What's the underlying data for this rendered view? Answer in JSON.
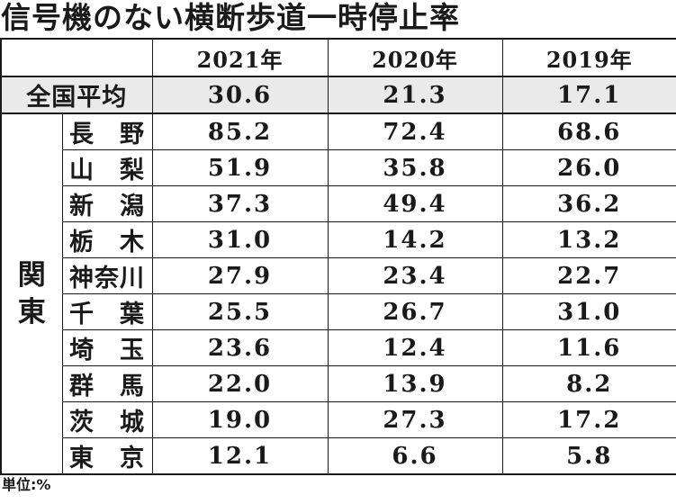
{
  "title": "信号機のない横断歩道一時停止率",
  "footnote": "単位:%",
  "colors": {
    "text": "#1a1a1a",
    "border": "#1a1a1a",
    "average_row_bg": "#eaeaea",
    "page_bg": "#ffffff"
  },
  "table": {
    "year_headers": [
      "2021年",
      "2020年",
      "2019年"
    ],
    "average_row": {
      "label": "全国平均",
      "values": [
        "30.6",
        "21.3",
        "17.1"
      ]
    },
    "region_group": {
      "label": "関東",
      "chars": [
        "関",
        "東"
      ]
    },
    "rows": [
      {
        "name": "長　野",
        "values": [
          "85.2",
          "72.4",
          "68.6"
        ]
      },
      {
        "name": "山　梨",
        "values": [
          "51.9",
          "35.8",
          "26.0"
        ]
      },
      {
        "name": "新　潟",
        "values": [
          "37.3",
          "49.4",
          "36.2"
        ]
      },
      {
        "name": "栃　木",
        "values": [
          "31.0",
          "14.2",
          "13.2"
        ]
      },
      {
        "name": "神奈川",
        "values": [
          "27.9",
          "23.4",
          "22.7"
        ]
      },
      {
        "name": "千　葉",
        "values": [
          "25.5",
          "26.7",
          "31.0"
        ]
      },
      {
        "name": "埼　玉",
        "values": [
          "23.6",
          "12.4",
          "11.6"
        ]
      },
      {
        "name": "群　馬",
        "values": [
          "22.0",
          "13.9",
          "8.2"
        ]
      },
      {
        "name": "茨　城",
        "values": [
          "19.0",
          "27.3",
          "17.2"
        ]
      },
      {
        "name": "東　京",
        "values": [
          "12.1",
          "6.6",
          "5.8"
        ]
      }
    ]
  },
  "chart_data": {
    "type": "table",
    "title": "信号機のない横断歩道一時停止率",
    "unit_note": "単位:%",
    "columns": [
      "2021年",
      "2020年",
      "2019年"
    ],
    "national_average": {
      "label": "全国平均",
      "values": [
        30.6,
        21.3,
        17.1
      ]
    },
    "region": "関東",
    "prefectures": [
      {
        "name": "長野",
        "values": [
          85.2,
          72.4,
          68.6
        ]
      },
      {
        "name": "山梨",
        "values": [
          51.9,
          35.8,
          26.0
        ]
      },
      {
        "name": "新潟",
        "values": [
          37.3,
          49.4,
          36.2
        ]
      },
      {
        "name": "栃木",
        "values": [
          31.0,
          14.2,
          13.2
        ]
      },
      {
        "name": "神奈川",
        "values": [
          27.9,
          23.4,
          22.7
        ]
      },
      {
        "name": "千葉",
        "values": [
          25.5,
          26.7,
          31.0
        ]
      },
      {
        "name": "埼玉",
        "values": [
          23.6,
          12.4,
          11.6
        ]
      },
      {
        "name": "群馬",
        "values": [
          22.0,
          13.9,
          8.2
        ]
      },
      {
        "name": "茨城",
        "values": [
          19.0,
          27.3,
          17.2
        ]
      },
      {
        "name": "東京",
        "values": [
          12.1,
          6.6,
          5.8
        ]
      }
    ]
  }
}
